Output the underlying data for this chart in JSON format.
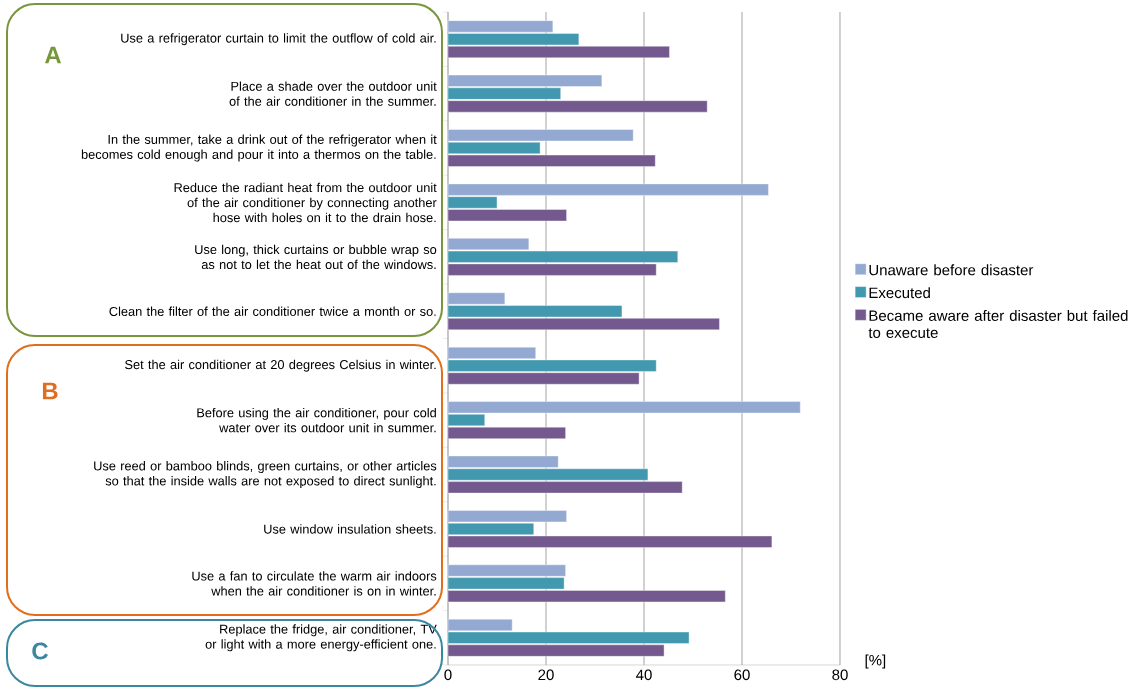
{
  "chart_data": {
    "type": "bar",
    "orientation": "horizontal",
    "xlabel": "[%]",
    "categories": [
      "Use a refrigerator curtain to limit the outflow of cold air.",
      "Place a shade over the outdoor unit of the air conditioner in the summer.",
      "In the summer, take a drink out of the refrigerator when it becomes cold enough and pour it into a thermos on the table.",
      "Reduce the radiant heat from the outdoor unit of the air conditioner by connecting another hose with holes on it to the drain hose.",
      "Use long, thick curtains or bubble wrap so as not to let the heat out of the windows.",
      "Clean the filter of the air conditioner twice a month or so.",
      "Set the air conditioner at 20 degrees Celsius in winter.",
      "Before using the air conditioner, pour cold water over its outdoor unit in summer.",
      "Use reed or bamboo blinds, green curtains, or other articles so that the inside walls are not exposed to direct sunlight.",
      "Use window insulation sheets.",
      "Use a fan to circulate the warm air indoors when the air conditioner is on in winter.",
      "Replace the fridge, air conditioner, TV or light with a more energy-efficient one."
    ],
    "series": [
      {
        "name": "Unaware before disaster",
        "color": "#94a9d1",
        "values": [
          21.4,
          31.4,
          37.8,
          65.4,
          16.5,
          11.6,
          17.9,
          71.9,
          22.5,
          24.2,
          24.0,
          13.1
        ]
      },
      {
        "name": "Executed",
        "color": "#4298af",
        "values": [
          26.7,
          23.0,
          18.8,
          10.0,
          46.9,
          35.5,
          42.5,
          7.5,
          40.8,
          17.5,
          23.7,
          49.2
        ]
      },
      {
        "name": "Became aware after disaster but failed to execute",
        "color": "#73598e",
        "values": [
          45.2,
          52.9,
          42.3,
          24.2,
          42.5,
          55.4,
          39.0,
          24.0,
          47.8,
          66.1,
          56.6,
          44.1
        ]
      }
    ],
    "xlim": [
      0,
      80
    ],
    "xticks": [
      0,
      20,
      40,
      60,
      80
    ],
    "grid": "x",
    "legend": "right",
    "annotations": [
      "A",
      "B",
      "C"
    ]
  }
}
